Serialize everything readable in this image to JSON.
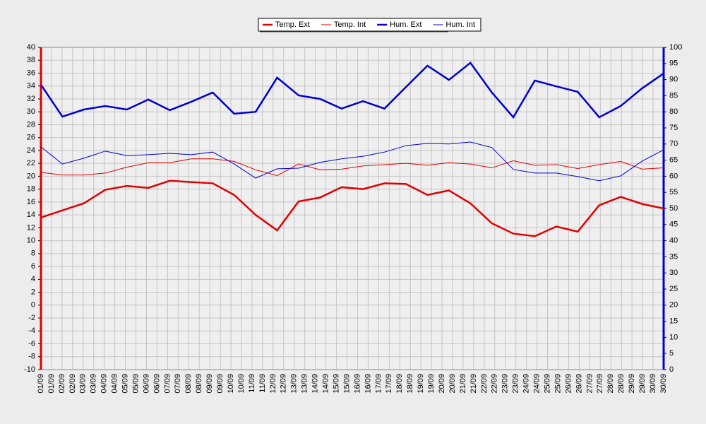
{
  "chart_data": {
    "type": "line",
    "xticks": [
      "01/09",
      "01/09",
      "02/09",
      "02/09",
      "03/09",
      "03/09",
      "04/09",
      "04/09",
      "05/09",
      "05/09",
      "06/09",
      "06/09",
      "07/09",
      "07/09",
      "08/09",
      "08/09",
      "09/09",
      "09/09",
      "10/09",
      "10/09",
      "11/09",
      "11/09",
      "12/09",
      "12/09",
      "13/09",
      "13/09",
      "14/09",
      "14/09",
      "15/09",
      "15/09",
      "16/09",
      "16/09",
      "17/09",
      "17/09",
      "18/09",
      "18/09",
      "19/09",
      "19/09",
      "20/09",
      "20/09",
      "21/09",
      "21/09",
      "22/09",
      "22/09",
      "23/09",
      "23/09",
      "24/09",
      "24/09",
      "25/09",
      "25/09",
      "26/09",
      "26/09",
      "27/09",
      "27/09",
      "28/09",
      "28/09",
      "29/09",
      "29/09",
      "30/09",
      "30/09"
    ],
    "ylim": [
      -10,
      40
    ],
    "yticks": [
      -10,
      -8,
      -6,
      -4,
      -2,
      0,
      2,
      4,
      6,
      8,
      10,
      12,
      14,
      16,
      18,
      20,
      22,
      24,
      26,
      28,
      30,
      32,
      34,
      36,
      38,
      40
    ],
    "y2lim": [
      0,
      100
    ],
    "y2ticks": [
      0,
      5,
      10,
      15,
      20,
      25,
      30,
      35,
      40,
      45,
      50,
      55,
      60,
      65,
      70,
      75,
      80,
      85,
      90,
      95,
      100
    ],
    "grid": true,
    "legend": "top",
    "series": [
      {
        "name": "Temp. Ext",
        "color": "#e00000",
        "width": 2.5,
        "values": [
          13.6,
          14.7,
          15.8,
          17.9,
          18.5,
          18.2,
          19.3,
          19.1,
          18.9,
          17.1,
          14,
          11.6,
          16.1,
          16.7,
          18.3,
          18,
          18.9,
          18.8,
          17.1,
          17.8,
          15.8,
          12.7,
          11.1,
          10.7,
          12.2,
          11.4,
          15.5,
          16.8,
          15.7,
          15
        ]
      },
      {
        "name": "Temp. Int",
        "color": "#e00000",
        "width": 1,
        "values": [
          20.6,
          20.2,
          20.2,
          20.5,
          21.4,
          22.1,
          22.1,
          22.7,
          22.7,
          22.3,
          21,
          20.1,
          21.9,
          21,
          21.1,
          21.6,
          21.8,
          22,
          21.7,
          22.1,
          21.9,
          21.3,
          22.4,
          21.7,
          21.8,
          21.2,
          21.8,
          22.3,
          21.1,
          21.3
        ]
      },
      {
        "name": "Hum. Ext",
        "color": "#0000d0",
        "width": 2.5,
        "axis": "y2",
        "values": [
          88.4,
          78.5,
          80.7,
          81.8,
          80.7,
          83.8,
          80.5,
          83.1,
          86,
          79.4,
          80,
          90.6,
          85.1,
          84,
          81,
          83.3,
          81,
          87.7,
          94.3,
          89.9,
          95.2,
          86,
          78.3,
          89.7,
          87.9,
          86.2,
          78.3,
          81.8,
          87.3,
          91.9
        ]
      },
      {
        "name": "Hum. Int",
        "color": "#0000d0",
        "width": 1,
        "axis": "y2",
        "values": [
          69.1,
          63.8,
          65.6,
          67.8,
          66.4,
          66.7,
          67.1,
          66.7,
          67.5,
          63.8,
          59.4,
          62.3,
          62.5,
          64.3,
          65.4,
          66.2,
          67.5,
          69.5,
          70.2,
          70,
          70.6,
          68.9,
          62.1,
          61,
          61,
          59.9,
          58.6,
          60.1,
          64.7,
          68.2
        ]
      }
    ]
  }
}
